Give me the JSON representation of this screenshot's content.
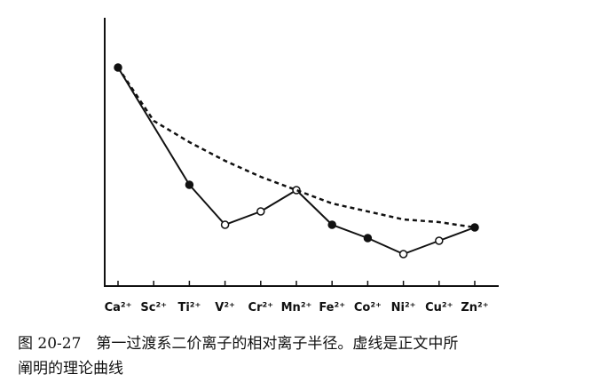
{
  "chart_data": {
    "type": "line",
    "categories": [
      "Ca²⁺",
      "Sc²⁺",
      "Ti²⁺",
      "V²⁺",
      "Cr²⁺",
      "Mn²⁺",
      "Fe²⁺",
      "Co²⁺",
      "Ni²⁺",
      "Cu²⁺",
      "Zn²⁺"
    ],
    "ylim": [
      0,
      100
    ],
    "series": [
      {
        "color": "#111111",
        "style": "solid",
        "values": [
          82,
          null,
          38,
          23,
          28,
          36,
          23,
          18,
          12,
          17,
          22
        ],
        "markers": [
          "filled",
          null,
          "filled",
          "open",
          "open",
          "open",
          "filled",
          "filled",
          "open",
          "open",
          "filled"
        ]
      },
      {
        "color": "#111111",
        "style": "dashed",
        "values": [
          82,
          62,
          54,
          47,
          41,
          36,
          31,
          28,
          25,
          24,
          22
        ]
      }
    ],
    "caption": [
      "图 20-27　第一过渡系二价离子的相对离子半径。虚线是正文中所",
      "阐明的理论曲线"
    ]
  }
}
